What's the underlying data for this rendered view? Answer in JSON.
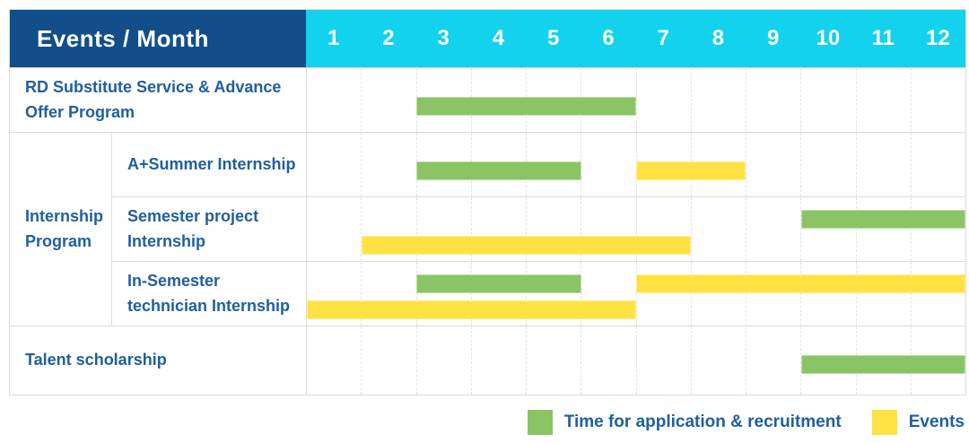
{
  "colors": {
    "navy": "#114e8a",
    "cyan": "#12d2ee",
    "green": "#8ac464",
    "yellow": "#ffe243",
    "text": "#1f5f9f",
    "grid": "#dcdcdc",
    "dash": "#e3e3e3"
  },
  "chart_data": {
    "type": "bar",
    "variant": "gantt-timeline",
    "corner_label": "Events / Month",
    "x_axis_label": "Month",
    "months": [
      "1",
      "2",
      "3",
      "4",
      "5",
      "6",
      "7",
      "8",
      "9",
      "10",
      "11",
      "12"
    ],
    "x_range": [
      1,
      12
    ],
    "grid": "dashed-vertical-month-lines",
    "legend_position": "bottom-right",
    "legend": [
      {
        "key": "application",
        "label": "Time for application & recruitment",
        "color": "#8ac464"
      },
      {
        "key": "events",
        "label": "Events",
        "color": "#ffe243"
      }
    ],
    "rows": [
      {
        "label": "RD Substitute Service & Advance Offer Program",
        "bars": [
          {
            "series": "application",
            "start_month": 3,
            "end_month": 6,
            "lane": "single"
          }
        ]
      },
      {
        "group": "Internship Program",
        "label": "A+Summer Internship",
        "bars": [
          {
            "series": "application",
            "start_month": 3,
            "end_month": 5,
            "lane": "single"
          },
          {
            "series": "events",
            "start_month": 7,
            "end_month": 8,
            "lane": "single"
          }
        ]
      },
      {
        "group": "Internship Program",
        "label": "Semester project Internship",
        "bars": [
          {
            "series": "application",
            "start_month": 10,
            "end_month": 12,
            "lane": "top"
          },
          {
            "series": "events",
            "start_month": 2,
            "end_month": 7,
            "lane": "bottom"
          }
        ]
      },
      {
        "group": "Internship Program",
        "label": "In-Semester technician Internship",
        "bars": [
          {
            "series": "application",
            "start_month": 3,
            "end_month": 5,
            "lane": "top"
          },
          {
            "series": "events",
            "start_month": 7,
            "end_month": 12,
            "lane": "top"
          },
          {
            "series": "events",
            "start_month": 1,
            "end_month": 6,
            "lane": "bottom"
          }
        ]
      },
      {
        "label": "Talent scholarship",
        "bars": [
          {
            "series": "application",
            "start_month": 10,
            "end_month": 12,
            "lane": "single"
          }
        ]
      }
    ]
  }
}
